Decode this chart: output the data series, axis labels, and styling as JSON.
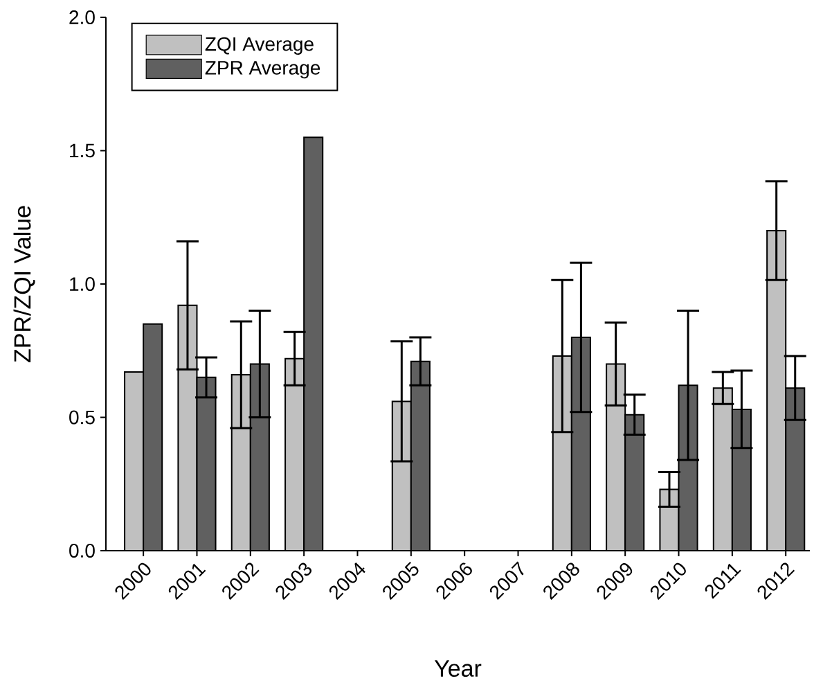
{
  "chart_data": {
    "type": "bar",
    "xlabel": "Year",
    "ylabel": "ZPR/ZQI Value",
    "categories": [
      "2000",
      "2001",
      "2002",
      "2003",
      "2004",
      "2005",
      "2006",
      "2007",
      "2008",
      "2009",
      "2010",
      "2011",
      "2012"
    ],
    "series": [
      {
        "name": "ZQI Average",
        "color": "#c0c0c0",
        "values": [
          0.67,
          0.92,
          0.66,
          0.72,
          null,
          0.56,
          null,
          null,
          0.73,
          0.7,
          0.23,
          0.61,
          1.2
        ],
        "errors": [
          null,
          0.24,
          0.2,
          0.1,
          null,
          0.225,
          null,
          null,
          0.285,
          0.155,
          0.065,
          0.06,
          0.185
        ]
      },
      {
        "name": "ZPR Average",
        "color": "#606060",
        "values": [
          0.85,
          0.65,
          0.7,
          1.55,
          null,
          0.71,
          null,
          null,
          0.8,
          0.51,
          0.62,
          0.53,
          0.61
        ],
        "errors": [
          null,
          0.075,
          0.2,
          null,
          null,
          0.09,
          null,
          null,
          0.28,
          0.075,
          0.28,
          0.145,
          0.12
        ]
      }
    ],
    "ylim": [
      0,
      2.0
    ],
    "yticks": [
      {
        "value": 0,
        "label": "0.0"
      },
      {
        "value": 0.5,
        "label": "0.5"
      },
      {
        "value": 1.0,
        "label": "1.0"
      },
      {
        "value": 1.5,
        "label": "1.5"
      },
      {
        "value": 2.0,
        "label": "2.0"
      }
    ],
    "grid": false,
    "legend": "top left"
  }
}
